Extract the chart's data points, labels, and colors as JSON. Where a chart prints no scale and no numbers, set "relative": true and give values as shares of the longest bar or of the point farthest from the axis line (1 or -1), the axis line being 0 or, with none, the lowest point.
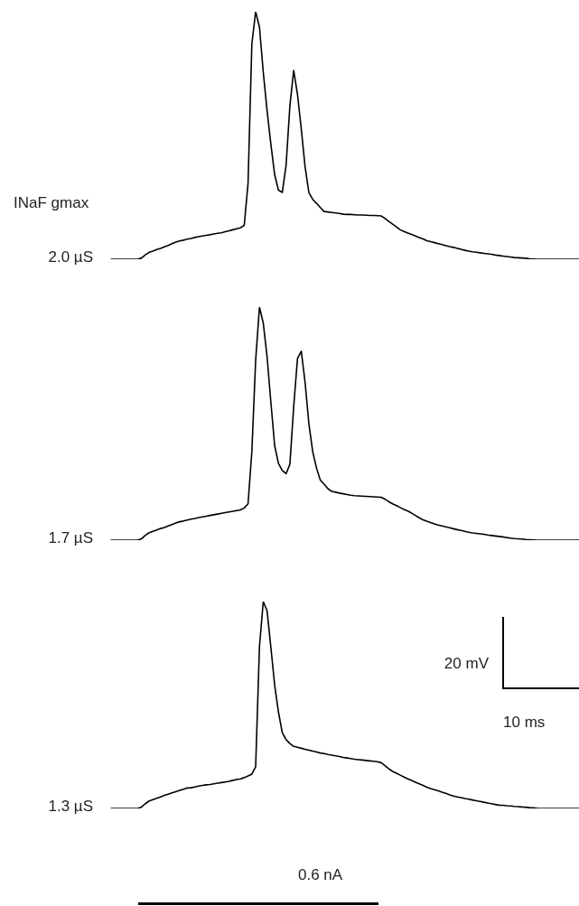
{
  "chart_data": [
    {
      "type": "line",
      "title": "INaF gmax",
      "relative": true,
      "marker": "none",
      "line_style": "solid",
      "categories": [
        null,
        null,
        null,
        null,
        null,
        null,
        null,
        null,
        null,
        null,
        null,
        null,
        null,
        null,
        null,
        null,
        null,
        null,
        null,
        null,
        null,
        null,
        null,
        null,
        null,
        null,
        null,
        null,
        null,
        null,
        null,
        null,
        null,
        null,
        null,
        null,
        null,
        null,
        null,
        null,
        null,
        null,
        null,
        null,
        null,
        null,
        null,
        null,
        null,
        null,
        null,
        null,
        null,
        null,
        null,
        null,
        null,
        null,
        null,
        null,
        null,
        null,
        null,
        null,
        null,
        null,
        null,
        null,
        null,
        null,
        null,
        null,
        null,
        null,
        null,
        null,
        null,
        null,
        null,
        null,
        null,
        null,
        null,
        null,
        null,
        null,
        null,
        null,
        null,
        null,
        null,
        null,
        null,
        null,
        null,
        null,
        null,
        null,
        null,
        null,
        null,
        null,
        null,
        null,
        null,
        null,
        null,
        null,
        null,
        null,
        null,
        null,
        null,
        null,
        null,
        null,
        null,
        null,
        null,
        null,
        null,
        null,
        null,
        null
      ],
      "series": [
        {
          "name": "2.0 µS",
          "color": "#000000",
          "values": [
            0,
            0,
            0,
            0,
            0,
            0,
            0,
            0,
            0.005,
            0.018,
            0.028,
            0.033,
            0.039,
            0.044,
            0.05,
            0.056,
            0.063,
            0.069,
            0.074,
            0.077,
            0.081,
            0.084,
            0.088,
            0.091,
            0.094,
            0.097,
            0.099,
            0.102,
            0.105,
            0.107,
            0.111,
            0.115,
            0.119,
            0.123,
            0.127,
            0.137,
            0.307,
            0.87,
            1,
            0.938,
            0.756,
            0.601,
            0.465,
            0.341,
            0.279,
            0.27,
            0.38,
            0.62,
            0.763,
            0.666,
            0.525,
            0.373,
            0.269,
            0.242,
            0.226,
            0.209,
            0.193,
            0.191,
            0.189,
            0.187,
            0.185,
            0.182,
            0.181,
            0.181,
            0.18,
            0.179,
            0.179,
            0.178,
            0.177,
            0.177,
            0.176,
            0.175,
            0.165,
            0.153,
            0.142,
            0.131,
            0.119,
            0.112,
            0.106,
            0.1,
            0.094,
            0.088,
            0.082,
            0.075,
            0.071,
            0.067,
            0.063,
            0.059,
            0.055,
            0.051,
            0.048,
            0.044,
            0.04,
            0.036,
            0.033,
            0.03,
            0.028,
            0.026,
            0.024,
            0.022,
            0.02,
            0.017,
            0.015,
            0.013,
            0.011,
            0.009,
            0.007,
            0.006,
            0.005,
            0.004,
            0.002,
            0.001,
            0,
            0,
            0,
            0,
            0,
            0,
            0,
            0,
            0,
            0,
            0,
            0
          ]
        }
      ]
    },
    {
      "type": "line",
      "relative": true,
      "marker": "none",
      "line_style": "solid",
      "categories": [
        null,
        null,
        null,
        null,
        null,
        null,
        null,
        null,
        null,
        null,
        null,
        null,
        null,
        null,
        null,
        null,
        null,
        null,
        null,
        null,
        null,
        null,
        null,
        null,
        null,
        null,
        null,
        null,
        null,
        null,
        null,
        null,
        null,
        null,
        null,
        null,
        null,
        null,
        null,
        null,
        null,
        null,
        null,
        null,
        null,
        null,
        null,
        null,
        null,
        null,
        null,
        null,
        null,
        null,
        null,
        null,
        null,
        null,
        null,
        null,
        null,
        null,
        null,
        null,
        null,
        null,
        null,
        null,
        null,
        null,
        null,
        null,
        null,
        null,
        null,
        null,
        null,
        null,
        null,
        null,
        null,
        null,
        null,
        null,
        null,
        null,
        null,
        null,
        null,
        null,
        null,
        null,
        null,
        null,
        null,
        null,
        null,
        null,
        null,
        null,
        null,
        null,
        null,
        null,
        null,
        null,
        null,
        null,
        null,
        null,
        null,
        null,
        null,
        null,
        null,
        null,
        null,
        null,
        null,
        null,
        null,
        null,
        null,
        null
      ],
      "series": [
        {
          "name": "1.7 µS",
          "color": "#000000",
          "values": [
            0,
            0,
            0,
            0,
            0,
            0,
            0,
            0,
            0.006,
            0.021,
            0.032,
            0.038,
            0.044,
            0.05,
            0.054,
            0.061,
            0.067,
            0.074,
            0.079,
            0.082,
            0.086,
            0.09,
            0.093,
            0.097,
            0.1,
            0.103,
            0.106,
            0.109,
            0.112,
            0.115,
            0.118,
            0.121,
            0.124,
            0.127,
            0.13,
            0.138,
            0.156,
            0.38,
            0.772,
            1,
            0.932,
            0.788,
            0.592,
            0.405,
            0.329,
            0.299,
            0.285,
            0.326,
            0.573,
            0.78,
            0.811,
            0.676,
            0.498,
            0.38,
            0.309,
            0.258,
            0.24,
            0.221,
            0.209,
            0.206,
            0.202,
            0.199,
            0.196,
            0.193,
            0.191,
            0.19,
            0.189,
            0.188,
            0.187,
            0.186,
            0.185,
            0.184,
            0.176,
            0.165,
            0.156,
            0.148,
            0.14,
            0.132,
            0.125,
            0.116,
            0.106,
            0.096,
            0.087,
            0.081,
            0.076,
            0.07,
            0.065,
            0.061,
            0.057,
            0.053,
            0.049,
            0.045,
            0.042,
            0.038,
            0.034,
            0.031,
            0.029,
            0.027,
            0.025,
            0.022,
            0.02,
            0.018,
            0.016,
            0.014,
            0.011,
            0.009,
            0.007,
            0.006,
            0.005,
            0.003,
            0.002,
            0.001,
            0,
            0,
            0,
            0,
            0,
            0,
            0,
            0,
            0,
            0,
            0,
            0
          ]
        }
      ]
    },
    {
      "type": "line",
      "relative": true,
      "marker": "none",
      "line_style": "solid",
      "annotations": [
        "20 mV",
        "10 ms",
        "0.6 nA"
      ],
      "categories": [
        null,
        null,
        null,
        null,
        null,
        null,
        null,
        null,
        null,
        null,
        null,
        null,
        null,
        null,
        null,
        null,
        null,
        null,
        null,
        null,
        null,
        null,
        null,
        null,
        null,
        null,
        null,
        null,
        null,
        null,
        null,
        null,
        null,
        null,
        null,
        null,
        null,
        null,
        null,
        null,
        null,
        null,
        null,
        null,
        null,
        null,
        null,
        null,
        null,
        null,
        null,
        null,
        null,
        null,
        null,
        null,
        null,
        null,
        null,
        null,
        null,
        null,
        null,
        null,
        null,
        null,
        null,
        null,
        null,
        null,
        null,
        null,
        null,
        null,
        null,
        null,
        null,
        null,
        null,
        null,
        null,
        null,
        null,
        null,
        null,
        null,
        null,
        null,
        null,
        null,
        null,
        null,
        null,
        null,
        null,
        null,
        null,
        null,
        null,
        null,
        null,
        null,
        null,
        null,
        null,
        null,
        null,
        null,
        null,
        null,
        null,
        null,
        null,
        null,
        null,
        null,
        null,
        null,
        null,
        null,
        null,
        null,
        null,
        null
      ],
      "series": [
        {
          "name": "1.3 µS",
          "color": "#000000",
          "values": [
            0,
            0,
            0,
            0,
            0,
            0,
            0,
            0,
            0.007,
            0.023,
            0.036,
            0.043,
            0.049,
            0.056,
            0.063,
            0.069,
            0.075,
            0.081,
            0.087,
            0.093,
            0.099,
            0.1,
            0.104,
            0.108,
            0.111,
            0.114,
            0.116,
            0.119,
            0.122,
            0.125,
            0.128,
            0.131,
            0.136,
            0.14,
            0.143,
            0.149,
            0.157,
            0.166,
            0.201,
            0.782,
            1,
            0.955,
            0.779,
            0.596,
            0.465,
            0.366,
            0.333,
            0.314,
            0.3,
            0.296,
            0.291,
            0.286,
            0.282,
            0.277,
            0.273,
            0.268,
            0.265,
            0.261,
            0.258,
            0.254,
            0.251,
            0.247,
            0.244,
            0.241,
            0.238,
            0.236,
            0.234,
            0.232,
            0.23,
            0.228,
            0.226,
            0.221,
            0.207,
            0.192,
            0.179,
            0.17,
            0.161,
            0.152,
            0.143,
            0.135,
            0.127,
            0.119,
            0.111,
            0.103,
            0.096,
            0.091,
            0.085,
            0.079,
            0.073,
            0.066,
            0.06,
            0.056,
            0.052,
            0.048,
            0.045,
            0.041,
            0.037,
            0.034,
            0.03,
            0.026,
            0.023,
            0.019,
            0.016,
            0.015,
            0.013,
            0.012,
            0.01,
            0.009,
            0.007,
            0.006,
            0.004,
            0.003,
            0.001,
            0,
            0,
            0,
            0,
            0,
            0,
            0,
            0,
            0,
            0,
            0
          ]
        }
      ]
    }
  ]
}
